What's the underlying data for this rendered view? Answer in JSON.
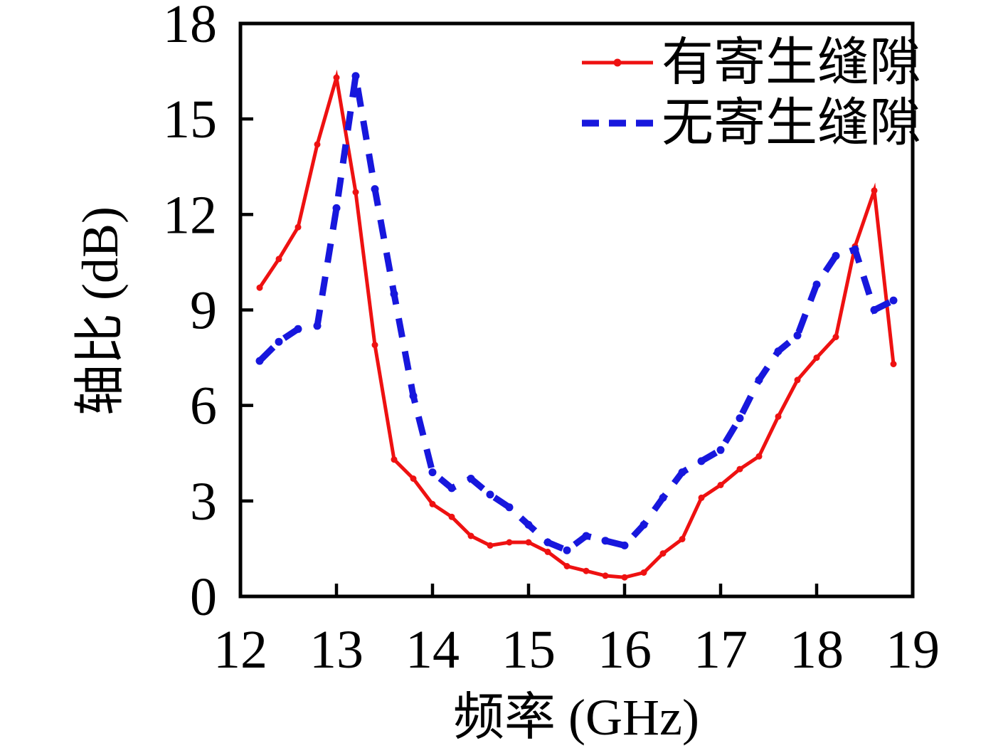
{
  "figure": {
    "background": "#ffffff",
    "frame_color": "#000000"
  },
  "chart_data": {
    "type": "line",
    "title": "",
    "xlabel": "频率 (GHz)",
    "ylabel": "轴比 (dB)",
    "xlim": [
      12,
      19
    ],
    "ylim": [
      0,
      18
    ],
    "x_ticks": [
      12,
      13,
      14,
      15,
      16,
      17,
      18,
      19
    ],
    "y_ticks": [
      0,
      3,
      6,
      9,
      12,
      15,
      18
    ],
    "grid": false,
    "legend_position": "top-right-inside",
    "x": [
      12.2,
      12.4,
      12.6,
      12.8,
      13.0,
      13.2,
      13.4,
      13.6,
      13.8,
      14.0,
      14.2,
      14.4,
      14.6,
      14.8,
      15.0,
      15.2,
      15.4,
      15.6,
      15.8,
      16.0,
      16.2,
      16.4,
      16.6,
      16.8,
      17.0,
      17.2,
      17.4,
      17.6,
      17.8,
      18.0,
      18.2,
      18.4,
      18.6,
      18.8
    ],
    "series": [
      {
        "name": "有寄生缝隙",
        "color": "#ee1111",
        "line_style": "solid",
        "line_width": 5,
        "marker": "dot",
        "marker_size": 4.5,
        "values": [
          9.7,
          10.6,
          11.6,
          14.2,
          16.3,
          12.7,
          7.9,
          4.3,
          3.7,
          2.9,
          2.5,
          1.9,
          1.6,
          1.7,
          1.7,
          1.4,
          0.95,
          0.8,
          0.65,
          0.6,
          0.75,
          1.35,
          1.8,
          3.1,
          3.5,
          4.0,
          4.4,
          5.65,
          6.8,
          7.5,
          8.15,
          11.0,
          12.75,
          7.3
        ]
      },
      {
        "name": "无寄生缝隙",
        "color": "#1717dd",
        "line_style": "dashed",
        "line_width": 9,
        "marker": "dot",
        "marker_size": 5.5,
        "values": [
          7.4,
          8.0,
          8.4,
          8.5,
          12.2,
          16.35,
          12.8,
          9.5,
          6.3,
          3.9,
          3.4,
          3.7,
          3.2,
          2.8,
          2.25,
          1.7,
          1.45,
          1.9,
          1.75,
          1.6,
          2.25,
          3.1,
          3.9,
          4.25,
          4.6,
          5.6,
          6.8,
          7.7,
          8.2,
          9.8,
          10.7,
          10.9,
          9.0,
          9.3
        ]
      }
    ]
  }
}
